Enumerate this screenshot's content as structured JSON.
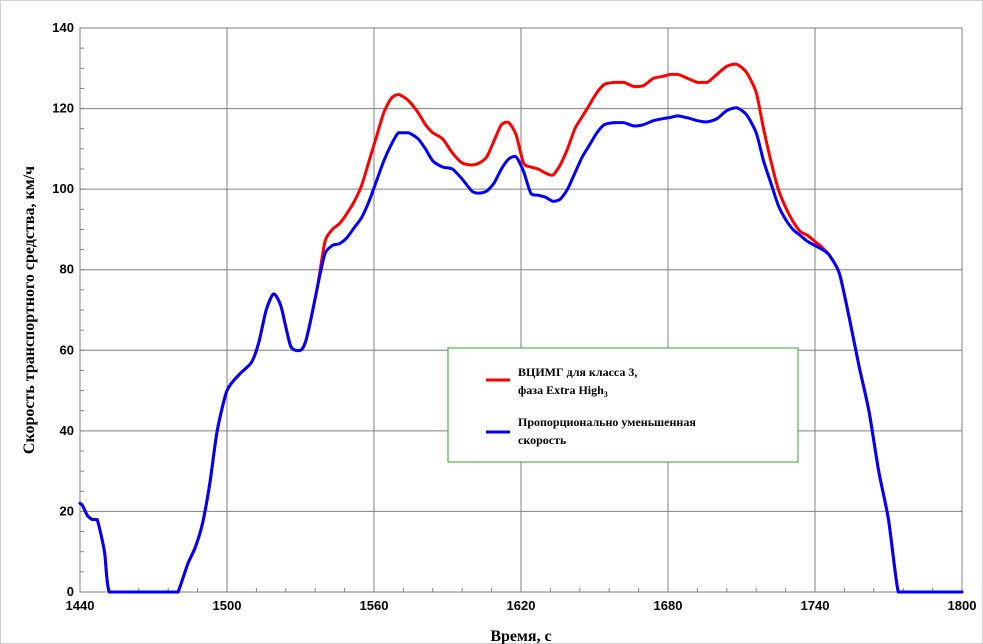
{
  "chart_data": {
    "type": "line",
    "title": "",
    "xlabel": "Время, с",
    "ylabel": "Скорость транспортного средства, км/ч",
    "xlim": [
      1440,
      1800
    ],
    "ylim": [
      0,
      140
    ],
    "xticks": [
      1440,
      1500,
      1560,
      1620,
      1680,
      1740,
      1800
    ],
    "yticks": [
      0,
      20,
      40,
      60,
      80,
      100,
      120,
      140
    ],
    "grid": true,
    "legend_position": "center-right",
    "series": [
      {
        "name": "ВЦИМГ для класса 3, фаза Extra High3",
        "color": "#ff0000",
        "x": [
          1440,
          1441,
          1443,
          1445,
          1447,
          1450,
          1452,
          1460,
          1470,
          1478,
          1480,
          1484,
          1487,
          1490,
          1493,
          1496,
          1500,
          1505,
          1510,
          1513,
          1516,
          1519,
          1522,
          1526,
          1530,
          1532,
          1534,
          1537,
          1540,
          1543,
          1546,
          1549,
          1552,
          1555,
          1558,
          1561,
          1564,
          1567,
          1570,
          1574,
          1578,
          1581,
          1584,
          1588,
          1592,
          1596,
          1600,
          1603,
          1606,
          1609,
          1612,
          1615,
          1618,
          1621,
          1624,
          1627,
          1630,
          1633,
          1636,
          1639,
          1642,
          1645,
          1648,
          1651,
          1654,
          1658,
          1662,
          1666,
          1670,
          1674,
          1678,
          1681,
          1684,
          1688,
          1692,
          1696,
          1700,
          1704,
          1708,
          1712,
          1716,
          1719,
          1722,
          1725,
          1728,
          1731,
          1734,
          1737,
          1740,
          1743,
          1746,
          1750,
          1754,
          1758,
          1762,
          1766,
          1770,
          1774,
          1778,
          1782,
          1786,
          1790,
          1794,
          1797,
          1800
        ],
        "y": [
          22,
          21.5,
          19,
          18,
          18,
          10,
          0,
          0,
          0,
          0,
          0,
          7,
          11,
          17,
          27,
          40,
          50,
          54,
          57,
          62,
          70,
          74,
          71,
          61,
          60,
          62,
          67,
          76,
          87,
          90,
          91.5,
          94,
          97,
          101,
          107,
          113,
          119,
          122.5,
          123.5,
          122,
          119,
          116,
          114,
          112.5,
          109,
          106.5,
          106,
          106.5,
          108,
          112,
          116,
          116.5,
          113.5,
          106.5,
          105.5,
          105,
          104,
          103.5,
          106,
          110,
          115,
          118,
          121,
          124,
          126,
          126.5,
          126.5,
          125.5,
          125.7,
          127.5,
          128,
          128.5,
          128.5,
          127.5,
          126.5,
          126.5,
          128.5,
          130.5,
          131,
          129,
          124,
          115,
          107,
          100,
          95.5,
          92,
          89.5,
          88.5,
          87,
          85.5,
          83.5,
          79,
          68,
          56,
          45,
          30,
          18,
          0,
          0,
          0,
          0,
          0,
          0,
          0,
          0
        ]
      },
      {
        "name": "Пропорционально уменьшенная скорость",
        "color": "#0000ff",
        "x": [
          1440,
          1441,
          1443,
          1445,
          1447,
          1450,
          1452,
          1460,
          1470,
          1478,
          1480,
          1484,
          1487,
          1490,
          1493,
          1496,
          1500,
          1505,
          1510,
          1513,
          1516,
          1519,
          1522,
          1526,
          1530,
          1532,
          1534,
          1537,
          1540,
          1543,
          1546,
          1549,
          1552,
          1555,
          1558,
          1561,
          1564,
          1567,
          1570,
          1574,
          1578,
          1581,
          1584,
          1588,
          1592,
          1596,
          1600,
          1603,
          1606,
          1609,
          1612,
          1615,
          1618,
          1621,
          1624,
          1627,
          1630,
          1633,
          1636,
          1639,
          1642,
          1645,
          1648,
          1651,
          1654,
          1658,
          1662,
          1666,
          1670,
          1674,
          1678,
          1681,
          1684,
          1688,
          1692,
          1696,
          1700,
          1704,
          1708,
          1712,
          1716,
          1719,
          1722,
          1725,
          1728,
          1731,
          1734,
          1737,
          1740,
          1743,
          1746,
          1750,
          1754,
          1758,
          1762,
          1766,
          1770,
          1774,
          1778,
          1782,
          1786,
          1790,
          1794,
          1797,
          1800
        ],
        "y": [
          22,
          21.5,
          19,
          18,
          18,
          10,
          0,
          0,
          0,
          0,
          0,
          7,
          11,
          17,
          27,
          40,
          50,
          54,
          57,
          62,
          70,
          74,
          71,
          61,
          60,
          62,
          67,
          76,
          84,
          86,
          86.5,
          88,
          90.5,
          93,
          97,
          102,
          107,
          111,
          114,
          114,
          112.5,
          110,
          107,
          105.5,
          105,
          102.5,
          99.5,
          99,
          99.5,
          101.5,
          105,
          107.5,
          108,
          104.5,
          99,
          98.5,
          98,
          97,
          97.5,
          100,
          104,
          108,
          111,
          114,
          116,
          116.5,
          116.5,
          115.7,
          116,
          117,
          117.5,
          117.8,
          118.2,
          117.7,
          117,
          116.7,
          117.5,
          119.5,
          120.2,
          118.5,
          114,
          107,
          101.5,
          96,
          92.5,
          90,
          88.5,
          87,
          86,
          85,
          83.5,
          79,
          68,
          56,
          45,
          30,
          18,
          0,
          0,
          0,
          0,
          0,
          0,
          0,
          0
        ]
      }
    ]
  },
  "legend": {
    "entries": [
      {
        "line1": "ВЦИМГ для класса 3,",
        "line2_main": "фаза Extra High",
        "line2_sub": "3"
      },
      {
        "line1": "Пропорционально уменьшенная",
        "line2_main": "скорость",
        "line2_sub": ""
      }
    ]
  }
}
